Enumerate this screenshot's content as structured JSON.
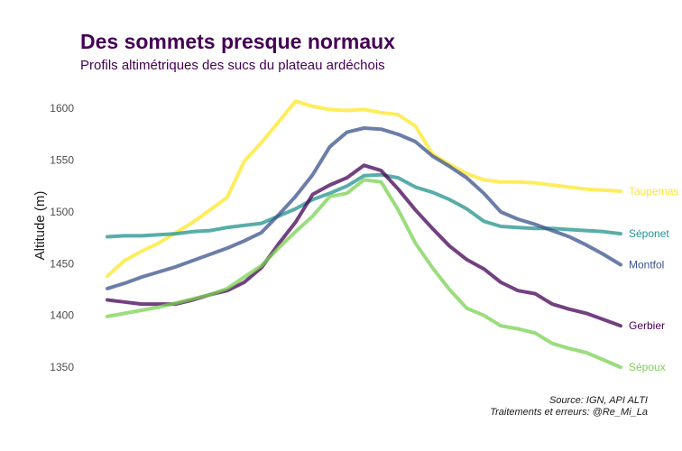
{
  "chart_data": {
    "type": "line",
    "title": "Des sommets presque normaux",
    "subtitle": "Profils altimétriques des sucs du plateau ardéchois",
    "xlabel": "",
    "ylabel": "Altitude (m)",
    "ylim": [
      1330,
      1622
    ],
    "yticks": [
      1350,
      1400,
      1450,
      1500,
      1550,
      1600
    ],
    "grid": false,
    "legend": "direct labels at right end of lines",
    "caption_lines": [
      "Source: IGN, API ALTI",
      "Traitements et erreurs: @Re_Mi_La"
    ],
    "x": [
      0,
      1,
      2,
      3,
      4,
      5,
      6,
      7,
      8,
      9,
      10,
      11,
      12,
      13,
      14,
      15,
      16,
      17,
      18,
      19,
      20,
      21,
      22,
      23,
      24,
      25,
      26,
      27,
      28,
      29,
      30
    ],
    "series": [
      {
        "name": "Taupemas",
        "color": "#fde725",
        "values": [
          1438,
          1453,
          1462,
          1470,
          1480,
          1490,
          1502,
          1514,
          1549,
          1567,
          1587,
          1607,
          1602,
          1599,
          1598,
          1599,
          1596,
          1594,
          1583,
          1556,
          1546,
          1537,
          1531,
          1529,
          1529,
          1528,
          1526,
          1524,
          1522,
          1521,
          1520
        ]
      },
      {
        "name": "Séponet",
        "color": "#21918c",
        "values": [
          1476,
          1477,
          1477,
          1478,
          1479,
          1481,
          1482,
          1485,
          1487,
          1489,
          1496,
          1503,
          1512,
          1518,
          1525,
          1535,
          1536,
          1533,
          1524,
          1519,
          1512,
          1503,
          1491,
          1486,
          1485,
          1484,
          1484,
          1483,
          1482,
          1481,
          1479
        ]
      },
      {
        "name": "Montfol",
        "color": "#3b528b",
        "values": [
          1426,
          1431,
          1437,
          1442,
          1447,
          1453,
          1459,
          1465,
          1472,
          1480,
          1497,
          1515,
          1536,
          1563,
          1577,
          1581,
          1580,
          1575,
          1568,
          1554,
          1544,
          1533,
          1518,
          1500,
          1493,
          1488,
          1482,
          1476,
          1468,
          1459,
          1449
        ]
      },
      {
        "name": "Gerbier",
        "color": "#440154",
        "values": [
          1415,
          1413,
          1411,
          1411,
          1411,
          1415,
          1420,
          1424,
          1432,
          1446,
          1469,
          1490,
          1517,
          1526,
          1533,
          1545,
          1540,
          1522,
          1502,
          1484,
          1467,
          1454,
          1445,
          1432,
          1424,
          1421,
          1411,
          1406,
          1402,
          1396,
          1390
        ]
      },
      {
        "name": "Sépoux",
        "color": "#7ad151",
        "values": [
          1399,
          1402,
          1405,
          1408,
          1412,
          1416,
          1420,
          1426,
          1437,
          1448,
          1465,
          1481,
          1496,
          1515,
          1518,
          1531,
          1529,
          1502,
          1470,
          1446,
          1425,
          1407,
          1400,
          1390,
          1387,
          1383,
          1373,
          1368,
          1364,
          1357,
          1350
        ]
      }
    ]
  }
}
